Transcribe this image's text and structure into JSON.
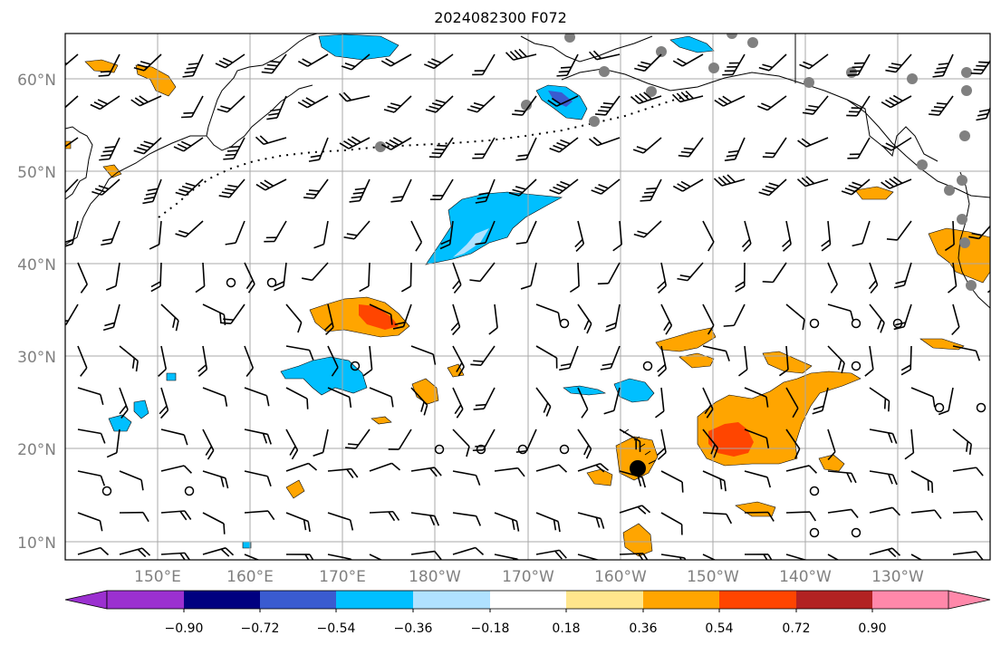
{
  "title": "2024082300 F072",
  "map": {
    "lat_labels": [
      "60°N",
      "50°N",
      "40°N",
      "30°N",
      "20°N",
      "10°N"
    ],
    "lon_labels": [
      "150°E",
      "160°E",
      "170°E",
      "180°W",
      "170°W",
      "160°W",
      "150°W",
      "140°W",
      "130°W"
    ],
    "colors": {
      "grid": "#a8a8a8",
      "coast": "#000000",
      "station": "#808080",
      "barb": "#000000"
    }
  },
  "colorbar": {
    "tick_labels": [
      "−0.90",
      "−0.72",
      "−0.54",
      "−0.36",
      "−0.18",
      "0.18",
      "0.36",
      "0.54",
      "0.72",
      "0.90"
    ],
    "colors": [
      "#9b30d0",
      "#000080",
      "#3a5bd0",
      "#00bfff",
      "#b0e2ff",
      "#ffffff",
      "#ffe68c",
      "#ffa500",
      "#ff4500",
      "#b22222",
      "#ff88aa"
    ]
  },
  "fields": {
    "positive_color_light": "#ffa500",
    "positive_color_dark": "#ff4500",
    "negative_color_light": "#00bfff",
    "negative_color_dark": "#3a5bd0"
  }
}
